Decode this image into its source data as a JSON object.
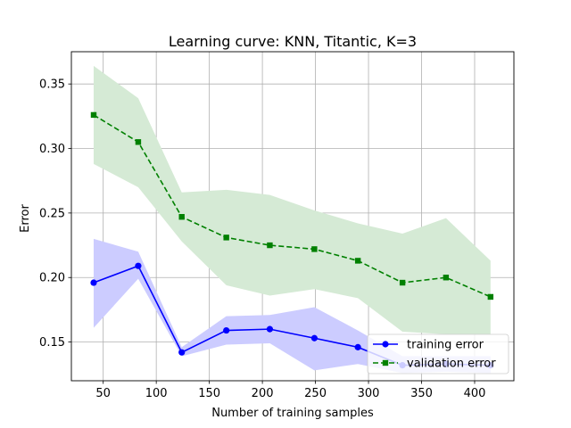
{
  "chart_data": {
    "type": "line",
    "title": "Learning curve: KNN, Titantic, K=3",
    "xlabel": "Number of training samples",
    "ylabel": "Error",
    "xlim": [
      20,
      437
    ],
    "ylim": [
      0.12,
      0.375
    ],
    "xticks": [
      50,
      100,
      150,
      200,
      250,
      300,
      350,
      400
    ],
    "yticks": [
      0.15,
      0.2,
      0.25,
      0.3,
      0.35
    ],
    "ytick_labels": [
      "0.15",
      "0.20",
      "0.25",
      "0.30",
      "0.35"
    ],
    "grid": true,
    "legend_position": "lower right",
    "x": [
      41,
      83,
      124,
      166,
      207,
      249,
      290,
      332,
      373,
      415
    ],
    "series": [
      {
        "name": "training error",
        "color": "#0000ff",
        "band_color": "#ccccff",
        "line_style": "solid",
        "marker": "circle",
        "values": [
          0.196,
          0.209,
          0.142,
          0.159,
          0.16,
          0.153,
          0.146,
          0.132,
          0.133,
          0.132
        ],
        "upper": [
          0.23,
          0.22,
          0.146,
          0.17,
          0.171,
          0.177,
          0.159,
          0.139,
          0.139,
          0.139
        ],
        "lower": [
          0.161,
          0.199,
          0.139,
          0.148,
          0.149,
          0.128,
          0.133,
          0.126,
          0.127,
          0.126
        ]
      },
      {
        "name": "validation error",
        "color": "#008000",
        "band_color": "#d5ead5",
        "line_style": "dashed",
        "marker": "square",
        "values": [
          0.326,
          0.305,
          0.247,
          0.231,
          0.225,
          0.222,
          0.213,
          0.196,
          0.2,
          0.185
        ],
        "upper": [
          0.364,
          0.339,
          0.266,
          0.268,
          0.264,
          0.252,
          0.242,
          0.234,
          0.246,
          0.213
        ],
        "lower": [
          0.288,
          0.27,
          0.228,
          0.194,
          0.186,
          0.191,
          0.184,
          0.158,
          0.156,
          0.156
        ]
      }
    ]
  }
}
